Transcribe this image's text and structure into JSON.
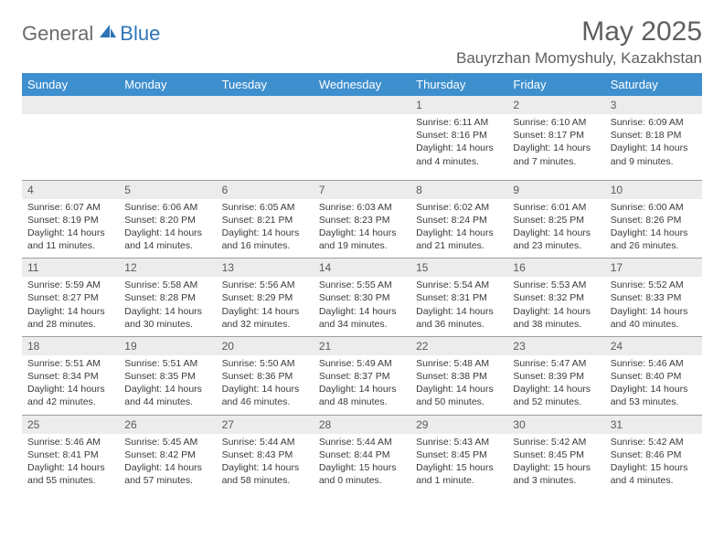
{
  "brand": {
    "general": "General",
    "blue": "Blue"
  },
  "title": {
    "month": "May 2025",
    "location": "Bauyrzhan Momyshuly, Kazakhstan"
  },
  "colors": {
    "header_bg": "#3e8fce",
    "header_text": "#ffffff",
    "numrow_bg": "#ececec",
    "numrow_text": "#595959",
    "body_text": "#3a3a3a",
    "title_text": "#5f5f5f",
    "logo_gray": "#6b6b6b",
    "logo_blue": "#2e75b6",
    "rule": "#9e9e9e"
  },
  "dows": [
    "Sunday",
    "Monday",
    "Tuesday",
    "Wednesday",
    "Thursday",
    "Friday",
    "Saturday"
  ],
  "weeks": [
    {
      "nums": [
        "",
        "",
        "",
        "",
        "1",
        "2",
        "3"
      ],
      "cells": [
        null,
        null,
        null,
        null,
        {
          "sunrise": "6:11 AM",
          "sunset": "8:16 PM",
          "daylight": "14 hours and 4 minutes."
        },
        {
          "sunrise": "6:10 AM",
          "sunset": "8:17 PM",
          "daylight": "14 hours and 7 minutes."
        },
        {
          "sunrise": "6:09 AM",
          "sunset": "8:18 PM",
          "daylight": "14 hours and 9 minutes."
        }
      ]
    },
    {
      "nums": [
        "4",
        "5",
        "6",
        "7",
        "8",
        "9",
        "10"
      ],
      "cells": [
        {
          "sunrise": "6:07 AM",
          "sunset": "8:19 PM",
          "daylight": "14 hours and 11 minutes."
        },
        {
          "sunrise": "6:06 AM",
          "sunset": "8:20 PM",
          "daylight": "14 hours and 14 minutes."
        },
        {
          "sunrise": "6:05 AM",
          "sunset": "8:21 PM",
          "daylight": "14 hours and 16 minutes."
        },
        {
          "sunrise": "6:03 AM",
          "sunset": "8:23 PM",
          "daylight": "14 hours and 19 minutes."
        },
        {
          "sunrise": "6:02 AM",
          "sunset": "8:24 PM",
          "daylight": "14 hours and 21 minutes."
        },
        {
          "sunrise": "6:01 AM",
          "sunset": "8:25 PM",
          "daylight": "14 hours and 23 minutes."
        },
        {
          "sunrise": "6:00 AM",
          "sunset": "8:26 PM",
          "daylight": "14 hours and 26 minutes."
        }
      ]
    },
    {
      "nums": [
        "11",
        "12",
        "13",
        "14",
        "15",
        "16",
        "17"
      ],
      "cells": [
        {
          "sunrise": "5:59 AM",
          "sunset": "8:27 PM",
          "daylight": "14 hours and 28 minutes."
        },
        {
          "sunrise": "5:58 AM",
          "sunset": "8:28 PM",
          "daylight": "14 hours and 30 minutes."
        },
        {
          "sunrise": "5:56 AM",
          "sunset": "8:29 PM",
          "daylight": "14 hours and 32 minutes."
        },
        {
          "sunrise": "5:55 AM",
          "sunset": "8:30 PM",
          "daylight": "14 hours and 34 minutes."
        },
        {
          "sunrise": "5:54 AM",
          "sunset": "8:31 PM",
          "daylight": "14 hours and 36 minutes."
        },
        {
          "sunrise": "5:53 AM",
          "sunset": "8:32 PM",
          "daylight": "14 hours and 38 minutes."
        },
        {
          "sunrise": "5:52 AM",
          "sunset": "8:33 PM",
          "daylight": "14 hours and 40 minutes."
        }
      ]
    },
    {
      "nums": [
        "18",
        "19",
        "20",
        "21",
        "22",
        "23",
        "24"
      ],
      "cells": [
        {
          "sunrise": "5:51 AM",
          "sunset": "8:34 PM",
          "daylight": "14 hours and 42 minutes."
        },
        {
          "sunrise": "5:51 AM",
          "sunset": "8:35 PM",
          "daylight": "14 hours and 44 minutes."
        },
        {
          "sunrise": "5:50 AM",
          "sunset": "8:36 PM",
          "daylight": "14 hours and 46 minutes."
        },
        {
          "sunrise": "5:49 AM",
          "sunset": "8:37 PM",
          "daylight": "14 hours and 48 minutes."
        },
        {
          "sunrise": "5:48 AM",
          "sunset": "8:38 PM",
          "daylight": "14 hours and 50 minutes."
        },
        {
          "sunrise": "5:47 AM",
          "sunset": "8:39 PM",
          "daylight": "14 hours and 52 minutes."
        },
        {
          "sunrise": "5:46 AM",
          "sunset": "8:40 PM",
          "daylight": "14 hours and 53 minutes."
        }
      ]
    },
    {
      "nums": [
        "25",
        "26",
        "27",
        "28",
        "29",
        "30",
        "31"
      ],
      "cells": [
        {
          "sunrise": "5:46 AM",
          "sunset": "8:41 PM",
          "daylight": "14 hours and 55 minutes."
        },
        {
          "sunrise": "5:45 AM",
          "sunset": "8:42 PM",
          "daylight": "14 hours and 57 minutes."
        },
        {
          "sunrise": "5:44 AM",
          "sunset": "8:43 PM",
          "daylight": "14 hours and 58 minutes."
        },
        {
          "sunrise": "5:44 AM",
          "sunset": "8:44 PM",
          "daylight": "15 hours and 0 minutes."
        },
        {
          "sunrise": "5:43 AM",
          "sunset": "8:45 PM",
          "daylight": "15 hours and 1 minute."
        },
        {
          "sunrise": "5:42 AM",
          "sunset": "8:45 PM",
          "daylight": "15 hours and 3 minutes."
        },
        {
          "sunrise": "5:42 AM",
          "sunset": "8:46 PM",
          "daylight": "15 hours and 4 minutes."
        }
      ]
    }
  ],
  "labels": {
    "sunrise": "Sunrise: ",
    "sunset": "Sunset: ",
    "daylight": "Daylight: "
  }
}
